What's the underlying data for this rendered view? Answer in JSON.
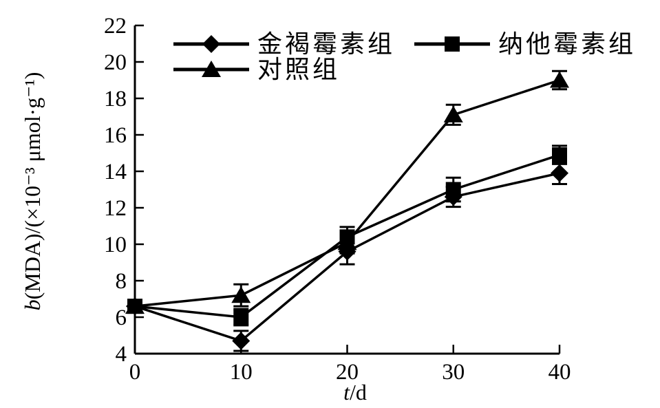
{
  "figure": {
    "background": "#ffffff",
    "ink": "#000000"
  },
  "chart_data": {
    "type": "line",
    "x": [
      0,
      10,
      20,
      30,
      40
    ],
    "xlabel_italic": "t",
    "xlabel_rest": "/d",
    "ylabel_italic": "b",
    "ylabel_rest": "(MDA)/(×10⁻³ μmol·g⁻¹)",
    "xlim": [
      0,
      40
    ],
    "ylim": [
      4,
      22
    ],
    "xticks": [
      0,
      10,
      20,
      30,
      40
    ],
    "yticks": [
      4,
      6,
      8,
      10,
      12,
      14,
      16,
      18,
      20,
      22
    ],
    "grid": false,
    "legend_position": "top-left-inside",
    "color": "#000000",
    "series": [
      {
        "name": "金褐霉素组",
        "marker": "diamond",
        "values": [
          6.6,
          4.7,
          9.6,
          12.6,
          13.9
        ],
        "errors": [
          0.15,
          0.55,
          0.7,
          0.55,
          0.6
        ]
      },
      {
        "name": "纳他霉素组",
        "marker": "square",
        "values": [
          6.6,
          6.0,
          10.4,
          13.0,
          14.9
        ],
        "errors": [
          0.15,
          0.45,
          0.55,
          0.65,
          0.5
        ]
      },
      {
        "name": "对照组",
        "marker": "triangle",
        "values": [
          6.6,
          7.2,
          10.1,
          17.1,
          19.0
        ],
        "errors": [
          0.15,
          0.6,
          0.6,
          0.55,
          0.5
        ]
      }
    ]
  }
}
